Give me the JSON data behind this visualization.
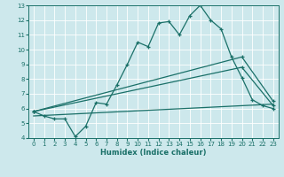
{
  "xlabel": "Humidex (Indice chaleur)",
  "xlim": [
    -0.5,
    23.5
  ],
  "ylim": [
    4,
    13
  ],
  "xticks": [
    0,
    1,
    2,
    3,
    4,
    5,
    6,
    7,
    8,
    9,
    10,
    11,
    12,
    13,
    14,
    15,
    16,
    17,
    18,
    19,
    20,
    21,
    22,
    23
  ],
  "yticks": [
    4,
    5,
    6,
    7,
    8,
    9,
    10,
    11,
    12,
    13
  ],
  "bg_color": "#cde8ec",
  "line_color": "#1a7068",
  "grid_color": "#ffffff",
  "line1_x": [
    0,
    1,
    2,
    3,
    4,
    5,
    6,
    7,
    8,
    9,
    10,
    11,
    12,
    13,
    14,
    15,
    16,
    17,
    18,
    19,
    20,
    21,
    22,
    23
  ],
  "line1_y": [
    5.8,
    5.5,
    5.3,
    5.3,
    4.1,
    4.8,
    6.4,
    6.3,
    7.6,
    9.0,
    10.5,
    10.2,
    11.8,
    11.9,
    11.0,
    12.3,
    13.0,
    12.0,
    11.4,
    9.5,
    8.1,
    6.6,
    6.2,
    6.0
  ],
  "line2_x": [
    0,
    20,
    23
  ],
  "line2_y": [
    5.8,
    9.5,
    6.5
  ],
  "line3_x": [
    0,
    20,
    23
  ],
  "line3_y": [
    5.8,
    8.8,
    6.2
  ],
  "line4_x": [
    0,
    23
  ],
  "line4_y": [
    5.5,
    6.3
  ]
}
